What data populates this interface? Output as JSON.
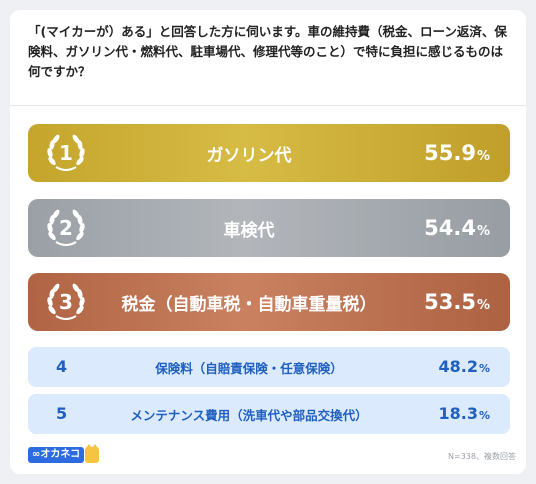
{
  "question": "「(マイカーが）ある」と回答した方に伺います。車の維持費（税金、ローン返済、保険料、ガソリン代・燃料代、駐車場代、修理代等のこと）で特に負担に感じるものは何ですか？",
  "logo_text": "∞オカネコ",
  "footnote": "N=338、複数回答",
  "colors": {
    "gold": "#c7a82f",
    "silver": "#9da2a8",
    "bronze": "#b86f4e",
    "others_bg": "#dbeafc",
    "others_text": "#1f5fbf"
  },
  "chart_data": {
    "type": "bar",
    "categories": [
      "ガソリン代",
      "車検代",
      "税金（自動車税・自動車重量税）",
      "保険料（自賠責保険・任意保険）",
      "メンテナンス費用（洗車代や部品交換代）"
    ],
    "ranks": [
      "1",
      "2",
      "3",
      "4",
      "5"
    ],
    "values": [
      55.9,
      54.4,
      53.5,
      48.2,
      18.3
    ],
    "value_labels": [
      "55.9",
      "54.4",
      "53.5",
      "48.2",
      "18.3"
    ],
    "unit": "%"
  }
}
